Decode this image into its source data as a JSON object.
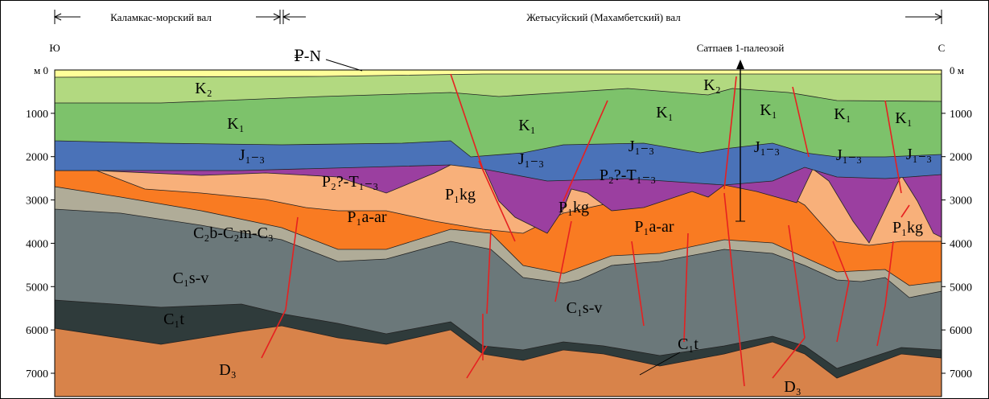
{
  "header": {
    "left_zone": "Каламкас-морский вал",
    "right_zone": "Жетысуйский (Махамбетский) вал",
    "south": "Ю",
    "north": "С",
    "well": "Сатпаев 1-палеозой"
  },
  "axis": {
    "left_zero": "м 0",
    "right_zero": "0 м",
    "ticks": [
      "1000",
      "2000",
      "3000",
      "4000",
      "5000",
      "6000",
      "7000"
    ]
  },
  "layers": [
    "K₂",
    "K₂",
    "K₁",
    "K₁",
    "K₁",
    "K₁",
    "K₁",
    "K₁",
    "J₁₋₃",
    "J₁₋₃",
    "J₁₋₃",
    "J₁₋₃",
    "J₁₋₃",
    "J₁₋₃",
    "P₂?-T₁₋₃",
    "P₂?-T₁₋₃",
    "P₁kg",
    "P₁kg",
    "P₁kg",
    "P₁a-ar",
    "P₁a-ar",
    "C₂b-C₂m-C₃",
    "C₁s-v",
    "C₁s-v",
    "C₁t",
    "C₁t",
    "D₃",
    "D₃",
    "₽-N"
  ]
}
